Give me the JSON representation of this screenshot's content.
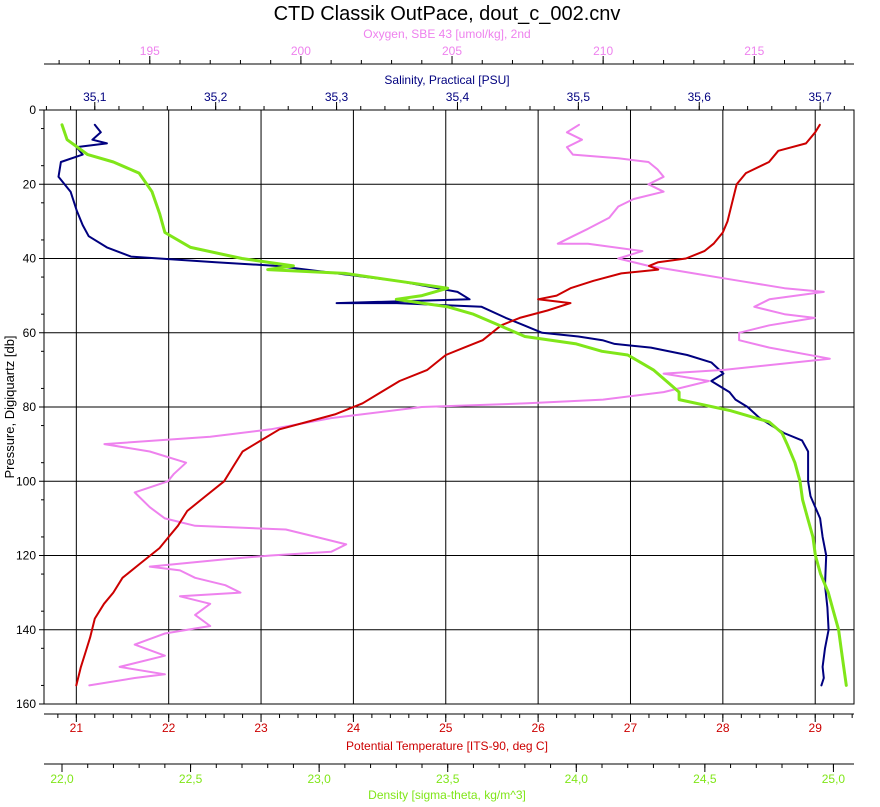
{
  "chart_data": {
    "type": "line",
    "title": "CTD Classik OutPace, dout_c_002.cnv",
    "grid": true,
    "pressure_axis": {
      "label": "Pressure, Digiquartz [db]",
      "range": [
        0,
        160
      ],
      "inverted": true,
      "ticks": [
        0,
        20,
        40,
        60,
        80,
        100,
        120,
        140,
        160
      ]
    },
    "axes": {
      "oxygen": {
        "label": "Oxygen, SBE 43 [umol/kg], 2nd",
        "range": [
          191.5,
          218.3
        ],
        "ticks": [
          195,
          200,
          205,
          210,
          215
        ],
        "tick_labels": [
          "195",
          "200",
          "205",
          "210",
          "215"
        ],
        "color": "#ee82ee"
      },
      "salinity": {
        "label": "Salinity, Practical [PSU]",
        "range": [
          35.058,
          35.728
        ],
        "ticks": [
          35.1,
          35.2,
          35.3,
          35.4,
          35.5,
          35.6,
          35.7
        ],
        "tick_labels": [
          "35,1",
          "35,2",
          "35,3",
          "35,4",
          "35,5",
          "35,6",
          "35,7"
        ],
        "color": "#00007f"
      },
      "temperature": {
        "label": "Potential Temperature [ITS-90, deg C]",
        "range": [
          20.65,
          29.42
        ],
        "ticks": [
          21,
          22,
          23,
          24,
          25,
          26,
          27,
          28,
          29
        ],
        "tick_labels": [
          "21",
          "22",
          "23",
          "24",
          "25",
          "26",
          "27",
          "28",
          "29"
        ],
        "color": "#cc0000"
      },
      "density": {
        "label": "Density [sigma-theta, kg/m^3]",
        "range": [
          21.93,
          25.08
        ],
        "ticks": [
          22.0,
          22.5,
          23.0,
          23.5,
          24.0,
          24.5,
          25.0
        ],
        "tick_labels": [
          "22,0",
          "22,5",
          "23,0",
          "23,5",
          "24,0",
          "24,5",
          "25,0"
        ],
        "color": "#80e619"
      }
    },
    "series": [
      {
        "name": "Salinity, Practical [PSU]",
        "axis": "salinity",
        "color": "#00007f",
        "points": [
          [
            35.1,
            4
          ],
          [
            35.105,
            6
          ],
          [
            35.098,
            8
          ],
          [
            35.11,
            9
          ],
          [
            35.085,
            10
          ],
          [
            35.09,
            12
          ],
          [
            35.072,
            14
          ],
          [
            35.07,
            18
          ],
          [
            35.08,
            22
          ],
          [
            35.085,
            27
          ],
          [
            35.09,
            31
          ],
          [
            35.095,
            34
          ],
          [
            35.11,
            37
          ],
          [
            35.13,
            39.5
          ],
          [
            35.2,
            41
          ],
          [
            35.25,
            42
          ],
          [
            35.3,
            44
          ],
          [
            35.35,
            46
          ],
          [
            35.4,
            49
          ],
          [
            35.41,
            51
          ],
          [
            35.3,
            52
          ],
          [
            35.35,
            52
          ],
          [
            35.42,
            53
          ],
          [
            35.44,
            56
          ],
          [
            35.455,
            58
          ],
          [
            35.47,
            60
          ],
          [
            35.5,
            61
          ],
          [
            35.52,
            62
          ],
          [
            35.53,
            63
          ],
          [
            35.56,
            64
          ],
          [
            35.59,
            66
          ],
          [
            35.61,
            68
          ],
          [
            35.62,
            71
          ],
          [
            35.61,
            73
          ],
          [
            35.625,
            76
          ],
          [
            35.63,
            78
          ],
          [
            35.64,
            80
          ],
          [
            35.65,
            83
          ],
          [
            35.66,
            85
          ],
          [
            35.67,
            87
          ],
          [
            35.685,
            89
          ],
          [
            35.69,
            92
          ],
          [
            35.69,
            96
          ],
          [
            35.69,
            100
          ],
          [
            35.692,
            104
          ],
          [
            35.7,
            110
          ],
          [
            35.702,
            115
          ],
          [
            35.705,
            120
          ],
          [
            35.704,
            128
          ],
          [
            35.706,
            134
          ],
          [
            35.707,
            140
          ],
          [
            35.704,
            145
          ],
          [
            35.702,
            150
          ],
          [
            35.703,
            153
          ],
          [
            35.701,
            155
          ]
        ]
      },
      {
        "name": "Oxygen, SBE 43 [umol/kg], 2nd",
        "axis": "oxygen",
        "color": "#ee82ee",
        "points": [
          [
            209.2,
            4
          ],
          [
            208.8,
            6
          ],
          [
            209.3,
            8
          ],
          [
            208.8,
            10
          ],
          [
            209.0,
            12
          ],
          [
            210.5,
            13
          ],
          [
            211.5,
            14
          ],
          [
            211.8,
            16
          ],
          [
            212.0,
            18
          ],
          [
            211.5,
            20
          ],
          [
            212.0,
            22
          ],
          [
            211.0,
            24
          ],
          [
            210.5,
            26
          ],
          [
            210.2,
            29
          ],
          [
            209.5,
            32
          ],
          [
            209.0,
            34
          ],
          [
            208.5,
            36
          ],
          [
            209.5,
            36
          ],
          [
            211.3,
            38
          ],
          [
            210.5,
            40
          ],
          [
            211.5,
            42
          ],
          [
            213.0,
            44
          ],
          [
            214.5,
            46
          ],
          [
            216.0,
            48
          ],
          [
            217.3,
            49
          ],
          [
            215.5,
            51
          ],
          [
            215.0,
            53
          ],
          [
            216.0,
            55
          ],
          [
            217.0,
            56
          ],
          [
            215.5,
            58
          ],
          [
            214.5,
            60
          ],
          [
            214.5,
            62
          ],
          [
            215.5,
            64
          ],
          [
            217.5,
            67
          ],
          [
            214.0,
            70
          ],
          [
            212.0,
            71
          ],
          [
            213.5,
            73
          ],
          [
            212.0,
            76
          ],
          [
            210.0,
            78
          ],
          [
            207.5,
            79
          ],
          [
            204.0,
            80
          ],
          [
            201.0,
            83
          ],
          [
            199.0,
            86
          ],
          [
            197.0,
            88
          ],
          [
            193.5,
            90
          ],
          [
            195.0,
            92
          ],
          [
            196.2,
            95
          ],
          [
            195.8,
            98
          ],
          [
            195.6,
            100
          ],
          [
            194.5,
            103
          ],
          [
            195.0,
            107
          ],
          [
            195.5,
            110
          ],
          [
            196.5,
            112
          ],
          [
            199.5,
            113
          ],
          [
            200.5,
            115
          ],
          [
            201.5,
            117
          ],
          [
            201.0,
            119
          ],
          [
            199.0,
            120
          ],
          [
            197.5,
            121
          ],
          [
            195.0,
            123
          ],
          [
            196.0,
            124
          ],
          [
            196.5,
            126
          ],
          [
            197.5,
            128
          ],
          [
            198.0,
            130
          ],
          [
            196.0,
            131
          ],
          [
            197.0,
            133
          ],
          [
            196.5,
            136
          ],
          [
            197.0,
            139
          ],
          [
            195.5,
            141
          ],
          [
            194.5,
            144
          ],
          [
            195.5,
            147
          ],
          [
            194.0,
            150
          ],
          [
            195.5,
            152
          ],
          [
            194.5,
            153
          ],
          [
            193.0,
            155
          ]
        ]
      },
      {
        "name": "Potential Temperature [ITS-90, deg C]",
        "axis": "temperature",
        "color": "#cc0000",
        "points": [
          [
            29.05,
            4
          ],
          [
            29.0,
            6
          ],
          [
            28.9,
            9
          ],
          [
            28.6,
            11
          ],
          [
            28.5,
            14
          ],
          [
            28.25,
            17
          ],
          [
            28.15,
            20
          ],
          [
            28.1,
            25
          ],
          [
            28.05,
            30
          ],
          [
            28.0,
            33
          ],
          [
            27.9,
            36
          ],
          [
            27.8,
            38
          ],
          [
            27.6,
            40
          ],
          [
            27.3,
            41
          ],
          [
            27.2,
            42
          ],
          [
            27.3,
            43
          ],
          [
            26.9,
            44
          ],
          [
            26.6,
            46
          ],
          [
            26.35,
            48
          ],
          [
            26.2,
            50
          ],
          [
            26.0,
            51
          ],
          [
            26.35,
            52
          ],
          [
            26.1,
            54
          ],
          [
            25.8,
            56
          ],
          [
            25.6,
            58
          ],
          [
            25.5,
            60
          ],
          [
            25.4,
            62
          ],
          [
            25.2,
            64
          ],
          [
            25.0,
            66
          ],
          [
            24.8,
            70
          ],
          [
            24.5,
            73
          ],
          [
            24.3,
            76
          ],
          [
            24.1,
            79
          ],
          [
            23.8,
            82
          ],
          [
            23.5,
            84
          ],
          [
            23.2,
            86
          ],
          [
            23.0,
            89
          ],
          [
            22.8,
            92
          ],
          [
            22.7,
            96
          ],
          [
            22.6,
            100
          ],
          [
            22.4,
            104
          ],
          [
            22.2,
            108
          ],
          [
            22.1,
            112
          ],
          [
            22.0,
            115
          ],
          [
            21.9,
            118
          ],
          [
            21.7,
            122
          ],
          [
            21.5,
            126
          ],
          [
            21.4,
            130
          ],
          [
            21.3,
            133
          ],
          [
            21.2,
            137
          ],
          [
            21.15,
            142
          ],
          [
            21.1,
            146
          ],
          [
            21.05,
            150
          ],
          [
            21.0,
            155
          ]
        ]
      },
      {
        "name": "Density [sigma-theta, kg/m^3]",
        "axis": "density",
        "color": "#80e619",
        "points": [
          [
            22.0,
            4
          ],
          [
            22.02,
            8
          ],
          [
            22.1,
            12
          ],
          [
            22.2,
            14
          ],
          [
            22.3,
            17
          ],
          [
            22.35,
            22
          ],
          [
            22.38,
            28
          ],
          [
            22.4,
            33
          ],
          [
            22.5,
            37
          ],
          [
            22.7,
            40
          ],
          [
            22.9,
            42
          ],
          [
            22.8,
            43
          ],
          [
            23.1,
            44
          ],
          [
            23.3,
            46
          ],
          [
            23.5,
            48
          ],
          [
            23.4,
            50
          ],
          [
            23.3,
            51
          ],
          [
            23.4,
            52
          ],
          [
            23.5,
            53
          ],
          [
            23.6,
            55
          ],
          [
            23.7,
            58
          ],
          [
            23.8,
            61
          ],
          [
            24.0,
            63
          ],
          [
            24.1,
            65
          ],
          [
            24.2,
            66
          ],
          [
            24.25,
            68
          ],
          [
            24.3,
            70
          ],
          [
            24.35,
            73
          ],
          [
            24.4,
            76
          ],
          [
            24.4,
            78
          ],
          [
            24.6,
            81
          ],
          [
            24.75,
            84
          ],
          [
            24.8,
            87
          ],
          [
            24.82,
            90
          ],
          [
            24.85,
            95
          ],
          [
            24.87,
            100
          ],
          [
            24.88,
            105
          ],
          [
            24.9,
            110
          ],
          [
            24.92,
            115
          ],
          [
            24.93,
            120
          ],
          [
            24.95,
            125
          ],
          [
            24.98,
            130
          ],
          [
            25.0,
            135
          ],
          [
            25.02,
            140
          ],
          [
            25.03,
            145
          ],
          [
            25.04,
            150
          ],
          [
            25.05,
            155
          ]
        ]
      }
    ]
  }
}
